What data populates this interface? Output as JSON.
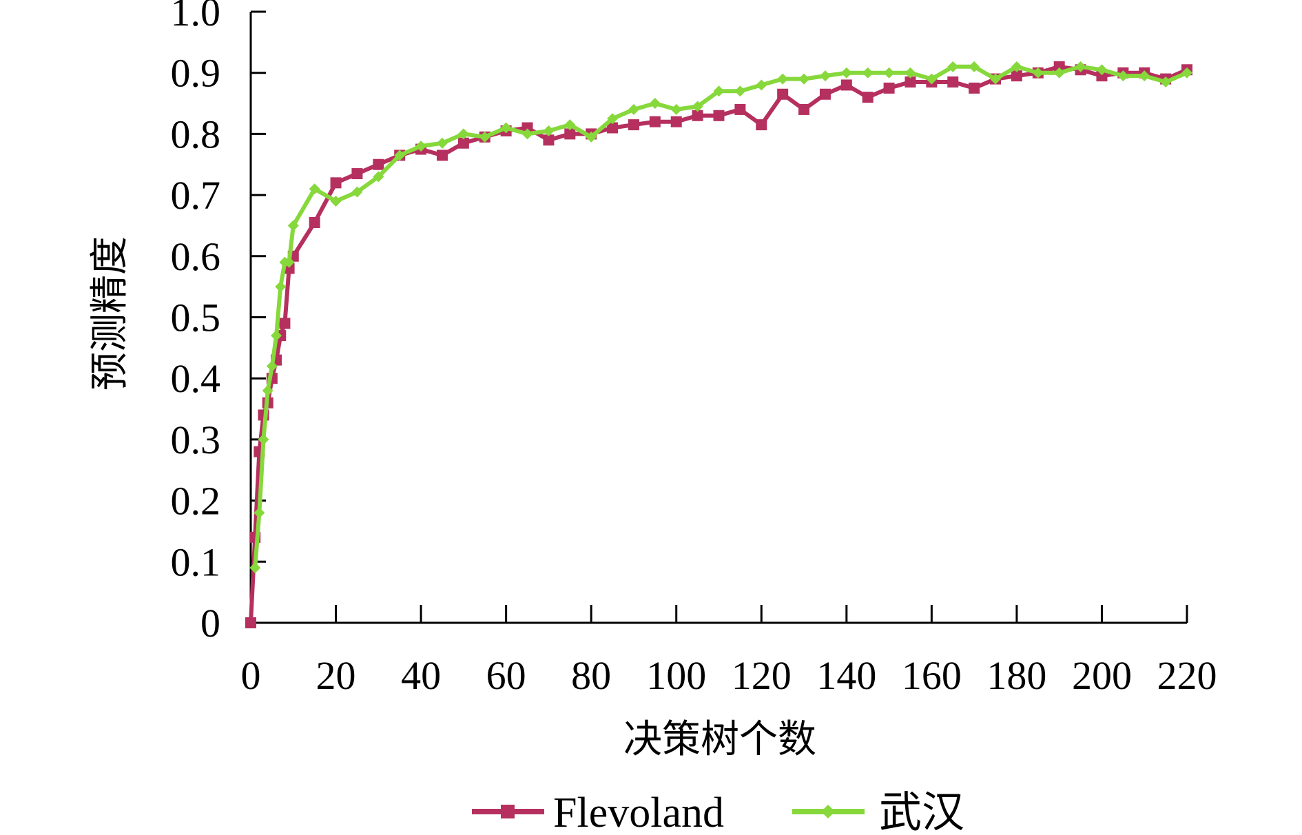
{
  "chart_data": {
    "type": "line",
    "xlabel": "决策树个数",
    "ylabel": "预测精度",
    "xlim": [
      0,
      220
    ],
    "ylim": [
      0,
      1.0
    ],
    "x_ticks": [
      0,
      20,
      40,
      60,
      80,
      100,
      120,
      140,
      160,
      180,
      200,
      220
    ],
    "x_tick_labels": [
      "0",
      "20",
      "40",
      "60",
      "80",
      "100",
      "120",
      "140",
      "160",
      "180",
      "200",
      "220"
    ],
    "y_ticks": [
      0,
      0.1,
      0.2,
      0.3,
      0.4,
      0.5,
      0.6,
      0.7,
      0.8,
      0.9,
      1.0
    ],
    "y_tick_labels": [
      "0",
      "0.1",
      "0.2",
      "0.3",
      "0.4",
      "0.5",
      "0.6",
      "0.7",
      "0.8",
      "0.9",
      "1.0"
    ],
    "grid": false,
    "legend_position": "bottom",
    "series": [
      {
        "name": "Flevoland",
        "color": "#b5305e",
        "marker": "square",
        "x": [
          0,
          1,
          2,
          3,
          4,
          5,
          6,
          7,
          8,
          9,
          10,
          15,
          20,
          25,
          30,
          35,
          40,
          45,
          50,
          55,
          60,
          65,
          70,
          75,
          80,
          85,
          90,
          95,
          100,
          105,
          110,
          115,
          120,
          125,
          130,
          135,
          140,
          145,
          150,
          155,
          160,
          165,
          170,
          175,
          180,
          185,
          190,
          195,
          200,
          205,
          210,
          215,
          220
        ],
        "y": [
          0.0,
          0.14,
          0.28,
          0.34,
          0.36,
          0.4,
          0.43,
          0.47,
          0.49,
          0.58,
          0.6,
          0.655,
          0.72,
          0.735,
          0.75,
          0.765,
          0.775,
          0.765,
          0.785,
          0.795,
          0.805,
          0.81,
          0.79,
          0.8,
          0.8,
          0.81,
          0.815,
          0.82,
          0.82,
          0.83,
          0.83,
          0.84,
          0.815,
          0.865,
          0.84,
          0.865,
          0.88,
          0.86,
          0.875,
          0.885,
          0.885,
          0.885,
          0.875,
          0.89,
          0.895,
          0.9,
          0.91,
          0.905,
          0.895,
          0.9,
          0.9,
          0.89,
          0.905
        ]
      },
      {
        "name": "武汉",
        "color": "#86d83b",
        "marker": "diamond",
        "x": [
          1,
          2,
          3,
          4,
          5,
          6,
          7,
          8,
          9,
          10,
          15,
          20,
          25,
          30,
          35,
          40,
          45,
          50,
          55,
          60,
          65,
          70,
          75,
          80,
          85,
          90,
          95,
          100,
          105,
          110,
          115,
          120,
          125,
          130,
          135,
          140,
          145,
          150,
          155,
          160,
          165,
          170,
          175,
          180,
          185,
          190,
          195,
          200,
          205,
          210,
          215,
          220
        ],
        "y": [
          0.09,
          0.18,
          0.3,
          0.38,
          0.42,
          0.47,
          0.55,
          0.59,
          0.59,
          0.65,
          0.71,
          0.69,
          0.705,
          0.73,
          0.765,
          0.78,
          0.785,
          0.8,
          0.795,
          0.81,
          0.8,
          0.805,
          0.815,
          0.795,
          0.825,
          0.84,
          0.85,
          0.84,
          0.845,
          0.87,
          0.87,
          0.88,
          0.89,
          0.89,
          0.895,
          0.9,
          0.9,
          0.9,
          0.9,
          0.89,
          0.91,
          0.91,
          0.89,
          0.91,
          0.9,
          0.9,
          0.91,
          0.905,
          0.895,
          0.895,
          0.885,
          0.9
        ]
      }
    ]
  }
}
